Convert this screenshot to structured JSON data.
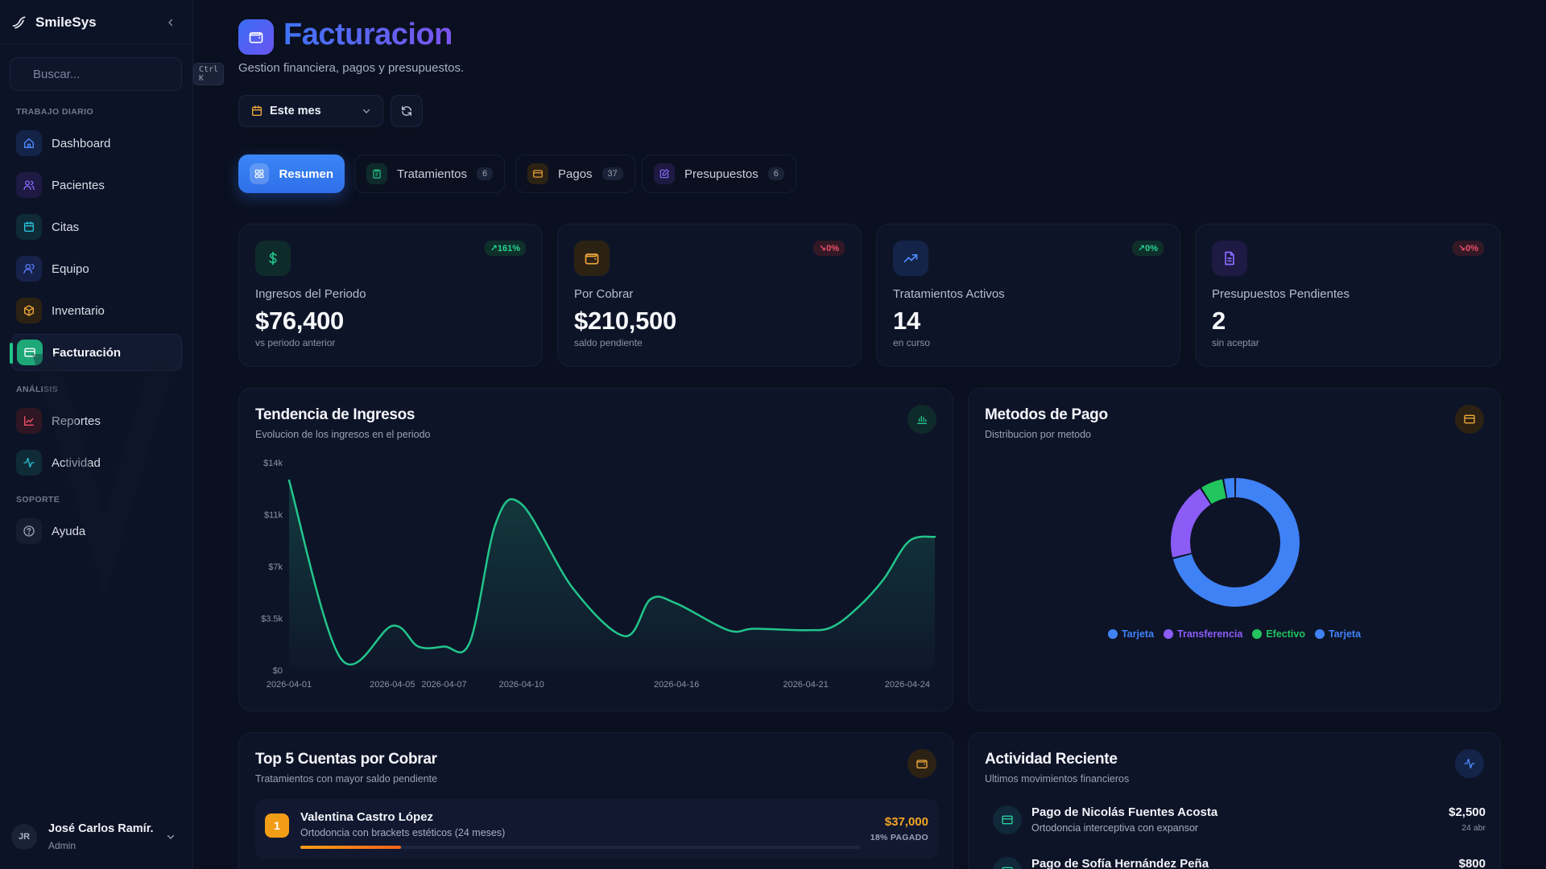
{
  "app": {
    "name": "SmileSys"
  },
  "search": {
    "placeholder": "Buscar...",
    "shortcut": "Ctrl K"
  },
  "sidebar": {
    "sections": [
      {
        "label": "TRABAJO DIARIO",
        "items": [
          {
            "label": "Dashboard",
            "icon": "home-icon",
            "color": "#4f8cff"
          },
          {
            "label": "Pacientes",
            "icon": "users-icon",
            "color": "#8b6cff"
          },
          {
            "label": "Citas",
            "icon": "calendar-icon",
            "color": "#2bc0d6"
          },
          {
            "label": "Equipo",
            "icon": "user-icon",
            "color": "#5d7dff"
          },
          {
            "label": "Inventario",
            "icon": "box-icon",
            "color": "#f0a93b"
          },
          {
            "label": "Facturación",
            "icon": "credit-card-icon",
            "color": "#22c58b",
            "active": true
          }
        ]
      },
      {
        "label": "ANÁLISIS",
        "items": [
          {
            "label": "Reportes",
            "icon": "line-chart-icon",
            "color": "#f0506b"
          },
          {
            "label": "Actividad",
            "icon": "activity-icon",
            "color": "#2bc0d6"
          }
        ]
      },
      {
        "label": "SOPORTE",
        "items": [
          {
            "label": "Ayuda",
            "icon": "help-circle-icon",
            "color": "#9aa2b8"
          }
        ]
      }
    ]
  },
  "user": {
    "initials": "JR",
    "name": "José Carlos Ramír...",
    "role": "Admin"
  },
  "header": {
    "title": "Facturacion",
    "subtitle": "Gestion financiera, pagos y presupuestos.",
    "period": "Este mes"
  },
  "tabs": [
    {
      "label": "Resumen",
      "icon": "grid-icon",
      "active": true
    },
    {
      "label": "Tratamientos",
      "count": "6",
      "icon": "clipboard-icon",
      "color": "#22c58b"
    },
    {
      "label": "Pagos",
      "count": "37",
      "icon": "card-icon",
      "color": "#f0a93b"
    },
    {
      "label": "Presupuestos",
      "count": "6",
      "icon": "edit-icon",
      "color": "#8b6cff"
    }
  ],
  "stats": [
    {
      "label": "Ingresos del Periodo",
      "value": "$76,400",
      "sub": "vs periodo anterior",
      "badge": "↗161%",
      "trend": "up",
      "icon": "dollar-icon",
      "color": "#22c58b"
    },
    {
      "label": "Por Cobrar",
      "value": "$210,500",
      "sub": "saldo pendiente",
      "badge": "↘0%",
      "trend": "down",
      "icon": "wallet-icon",
      "color": "#f0a93b"
    },
    {
      "label": "Tratamientos Activos",
      "value": "14",
      "sub": "en curso",
      "badge": "↗0%",
      "trend": "up",
      "icon": "trending-up-icon",
      "color": "#4f8cff"
    },
    {
      "label": "Presupuestos Pendientes",
      "value": "2",
      "sub": "sin aceptar",
      "badge": "↘0%",
      "trend": "down",
      "icon": "file-text-icon",
      "color": "#8b6cff"
    }
  ],
  "trend_card": {
    "title": "Tendencia de Ingresos",
    "subtitle": "Evolucion de los ingresos en el periodo"
  },
  "methods_card": {
    "title": "Metodos de Pago",
    "subtitle": "Distribucion por metodo"
  },
  "chart_data": [
    {
      "type": "area",
      "title": "Tendencia de Ingresos",
      "xlabel": "",
      "ylabel": "",
      "ylim": [
        0,
        14000
      ],
      "y_ticks": [
        {
          "value": 0,
          "label": "$0"
        },
        {
          "value": 3500,
          "label": "$3.5k"
        },
        {
          "value": 7000,
          "label": "$7k"
        },
        {
          "value": 10500,
          "label": "$11k"
        },
        {
          "value": 14000,
          "label": "$14k"
        }
      ],
      "x_ticks": [
        "2026-04-01",
        "2026-04-05",
        "2026-04-07",
        "2026-04-10",
        "2026-04-16",
        "2026-04-21",
        "2026-04-24"
      ],
      "x": [
        "2026-04-01",
        "2026-04-03",
        "2026-04-05",
        "2026-04-06",
        "2026-04-07",
        "2026-04-08",
        "2026-04-09",
        "2026-04-10",
        "2026-04-12",
        "2026-04-14",
        "2026-04-15",
        "2026-04-16",
        "2026-04-18",
        "2026-04-19",
        "2026-04-21",
        "2026-04-22",
        "2026-04-23",
        "2026-04-24",
        "2026-04-25",
        "2026-04-26"
      ],
      "values": [
        12800,
        800,
        3000,
        1600,
        1600,
        1900,
        9900,
        11200,
        5500,
        2300,
        4800,
        4500,
        2700,
        2800,
        2700,
        2900,
        4200,
        6100,
        8700,
        9000
      ],
      "grid": false,
      "color": "#22c58b"
    },
    {
      "type": "pie",
      "title": "Metodos de Pago",
      "labels": [
        "Tarjeta",
        "Transferencia",
        "Efectivo",
        "Tarjeta"
      ],
      "values": [
        71,
        20,
        6,
        3
      ],
      "colors": [
        "#3f82f6",
        "#8b5cf6",
        "#22c55e",
        "#3f82f6"
      ],
      "legend": "bottom"
    }
  ],
  "receivables_card": {
    "title": "Top 5 Cuentas por Cobrar",
    "subtitle": "Tratamientos con mayor saldo pendiente",
    "items": [
      {
        "rank": "1",
        "name": "Valentina Castro López",
        "desc": "Ortodoncia con brackets estéticos (24 meses)",
        "amount": "$37,000",
        "paid_label": "18% PAGADO",
        "paid": 0.18
      }
    ]
  },
  "activity_card": {
    "title": "Actividad Reciente",
    "subtitle": "Ultimos movimientos financieros",
    "items": [
      {
        "title": "Pago de Nicolás Fuentes Acosta",
        "desc": "Ortodoncia interceptiva con expansor",
        "amount": "$2,500",
        "date": "24 abr"
      },
      {
        "title": "Pago de Sofía Hernández Peña",
        "desc": "",
        "amount": "$800",
        "date": ""
      }
    ]
  }
}
